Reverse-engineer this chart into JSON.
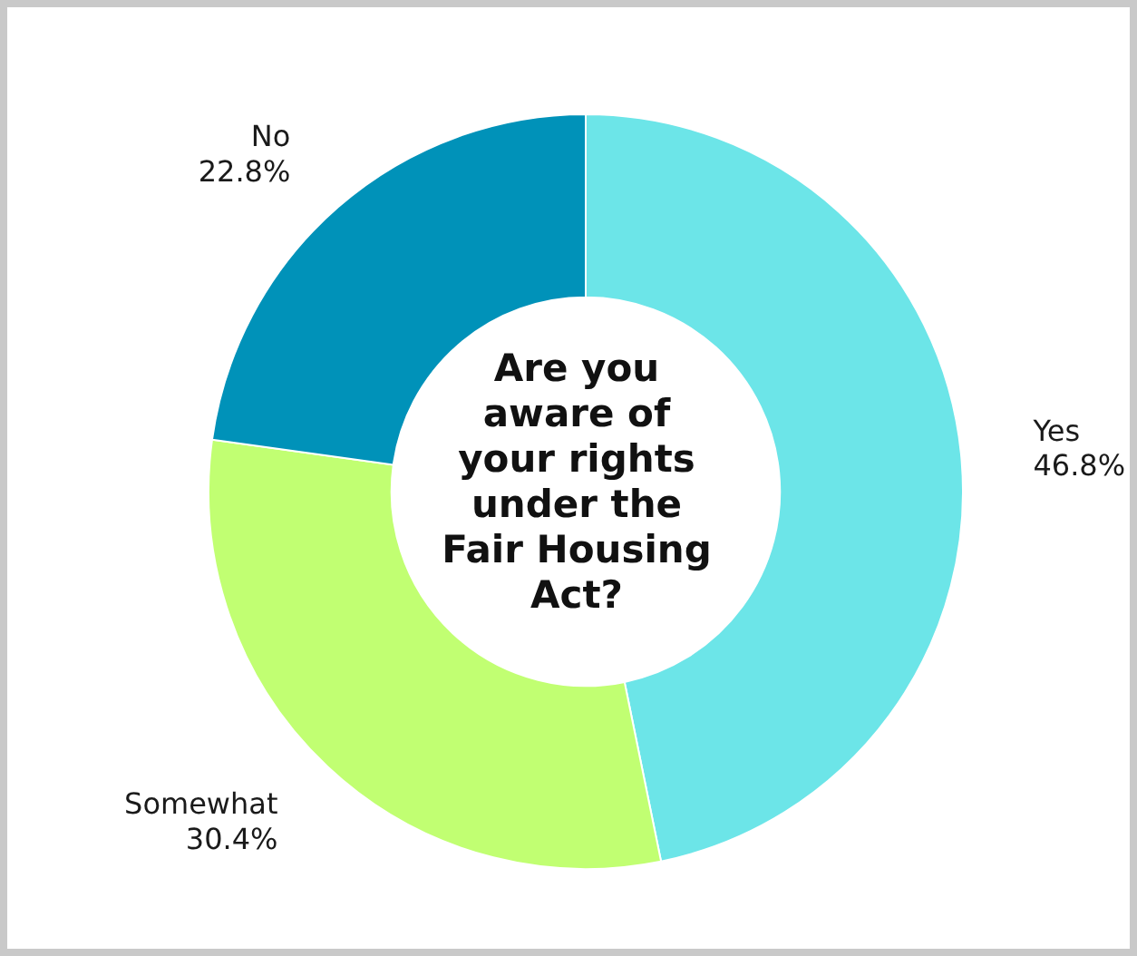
{
  "chart_data": {
    "type": "donut",
    "title": "Are you aware of your rights under the Fair Housing Act?",
    "categories": [
      "Yes",
      "Somewhat",
      "No"
    ],
    "values": [
      46.8,
      30.4,
      22.8
    ],
    "value_labels": [
      "46.8%",
      "30.4%",
      "22.8%"
    ],
    "colors": [
      "#6ce5e8",
      "#c1ff72",
      "#0092b9"
    ],
    "legend": false
  }
}
